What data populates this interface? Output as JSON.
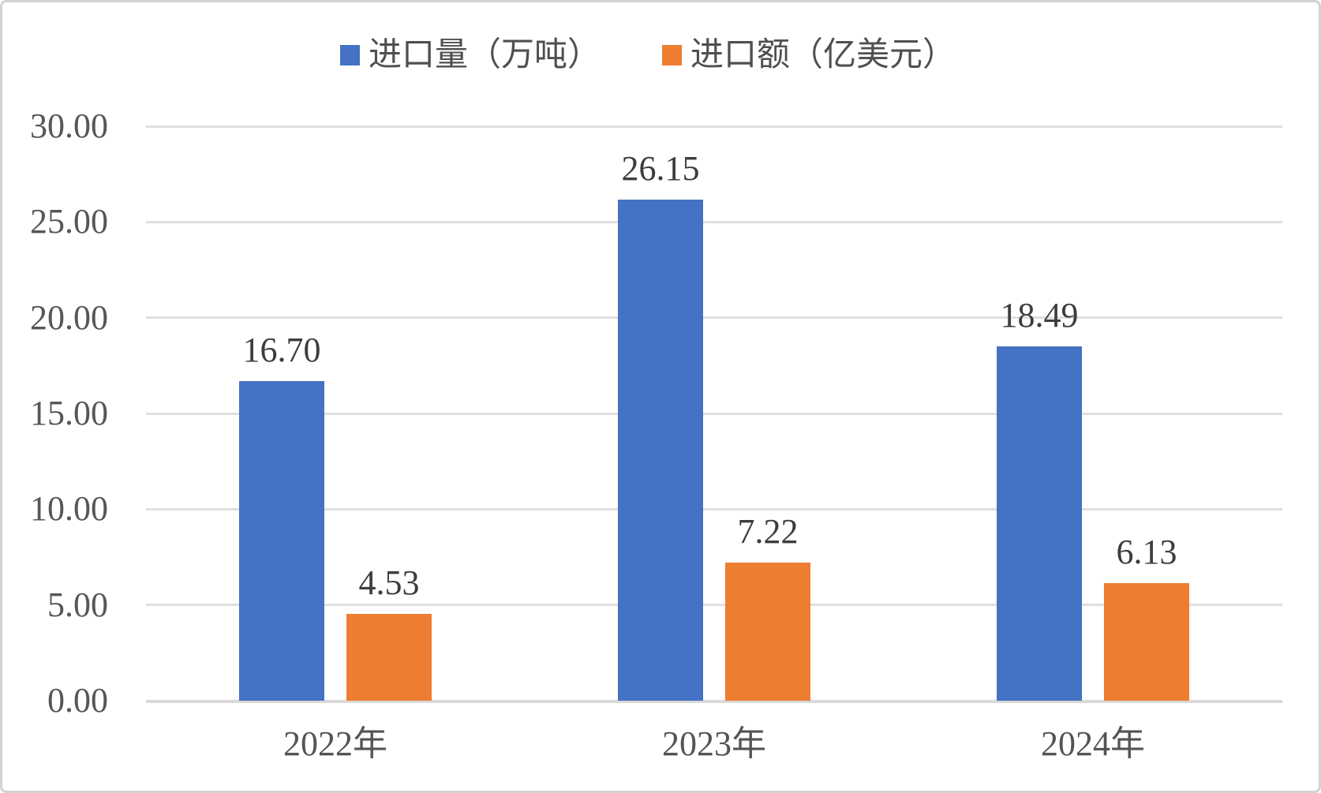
{
  "chart_data": {
    "type": "bar",
    "title": "",
    "xlabel": "",
    "ylabel": "",
    "categories": [
      "2022年",
      "2023年",
      "2024年"
    ],
    "series": [
      {
        "name": "进口量（万吨）",
        "color": "#4472C4",
        "values": [
          16.7,
          26.15,
          18.49
        ],
        "labels": [
          "16.70",
          "26.15",
          "18.49"
        ]
      },
      {
        "name": "进口额（亿美元）",
        "color": "#ED7D31",
        "values": [
          4.53,
          7.22,
          6.13
        ],
        "labels": [
          "4.53",
          "7.22",
          "6.13"
        ]
      }
    ],
    "ylim": [
      0,
      30
    ],
    "ytick_step": 5,
    "ytick_labels": [
      "0.00",
      "5.00",
      "10.00",
      "15.00",
      "20.00",
      "25.00",
      "30.00"
    ],
    "grid": true,
    "legend_position": "top",
    "data_labels": true
  },
  "colors": {
    "grid": "#dfdfdf",
    "axis": "#d9d9d9",
    "tick_text": "#565656",
    "data_label_text": "#3d3d3d",
    "category_text": "#545454",
    "legend_text": "#4f4f4f",
    "background": "#ffffff",
    "border": "#d2d2d2"
  }
}
